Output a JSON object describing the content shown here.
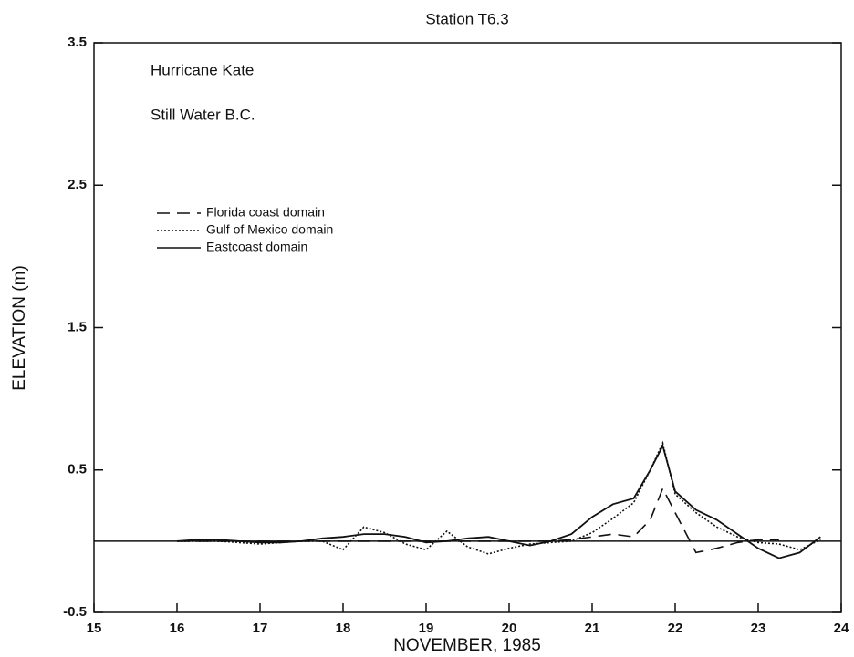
{
  "chart_data": {
    "type": "line",
    "title": "Station T6.3",
    "annotations": [
      "Hurricane Kate",
      "Still Water B.C."
    ],
    "x_label": "NOVEMBER, 1985",
    "y_label": "ELEVATION (m)",
    "x": [
      16,
      16.25,
      16.5,
      16.75,
      17,
      17.25,
      17.5,
      17.75,
      18,
      18.25,
      18.5,
      18.75,
      19,
      19.25,
      19.5,
      19.75,
      20,
      20.25,
      20.5,
      20.75,
      21,
      21.25,
      21.5,
      21.7,
      21.85,
      22,
      22.25,
      22.5,
      22.75,
      23,
      23.25,
      23.5,
      23.75
    ],
    "series": [
      {
        "name": "Florida coast domain",
        "color": "#111111",
        "dash": "dashed",
        "values": [
          0,
          0,
          0,
          0,
          0,
          0,
          0,
          0,
          0,
          0,
          0,
          0,
          0,
          0,
          0,
          0,
          0,
          0,
          0,
          0.01,
          0.03,
          0.05,
          0.03,
          0.15,
          0.37,
          0.2,
          -0.08,
          -0.05,
          -0.01,
          0.01,
          0.01,
          null,
          null
        ]
      },
      {
        "name": "Gulf of Mexico domain",
        "color": "#111111",
        "dash": "dotted",
        "values": [
          0,
          0,
          0,
          -0.01,
          -0.02,
          -0.01,
          0,
          0,
          -0.06,
          0.1,
          0.06,
          -0.02,
          -0.06,
          0.07,
          -0.04,
          -0.09,
          -0.05,
          -0.02,
          -0.01,
          0,
          0.06,
          0.16,
          0.27,
          0.5,
          0.69,
          0.33,
          0.2,
          0.1,
          0.03,
          -0.01,
          -0.02,
          -0.06,
          0.01
        ]
      },
      {
        "name": "Eastcoast domain",
        "color": "#111111",
        "dash": "solid",
        "values": [
          0,
          0.01,
          0.01,
          0,
          -0.01,
          -0.01,
          0,
          0.02,
          0.03,
          0.05,
          0.05,
          0.03,
          -0.01,
          0,
          0.02,
          0.03,
          0,
          -0.03,
          0,
          0.05,
          0.17,
          0.26,
          0.3,
          0.5,
          0.67,
          0.35,
          0.22,
          0.15,
          0.05,
          -0.05,
          -0.12,
          -0.08,
          0.03
        ]
      }
    ],
    "xlim": [
      15,
      24
    ],
    "xticks": [
      15,
      16,
      17,
      18,
      19,
      20,
      21,
      22,
      23,
      24
    ],
    "ylim": [
      -0.5,
      3.5
    ],
    "yticks": [
      -0.5,
      0.5,
      1.5,
      2.5,
      3.5
    ],
    "legend": "upper left",
    "grid": false
  }
}
